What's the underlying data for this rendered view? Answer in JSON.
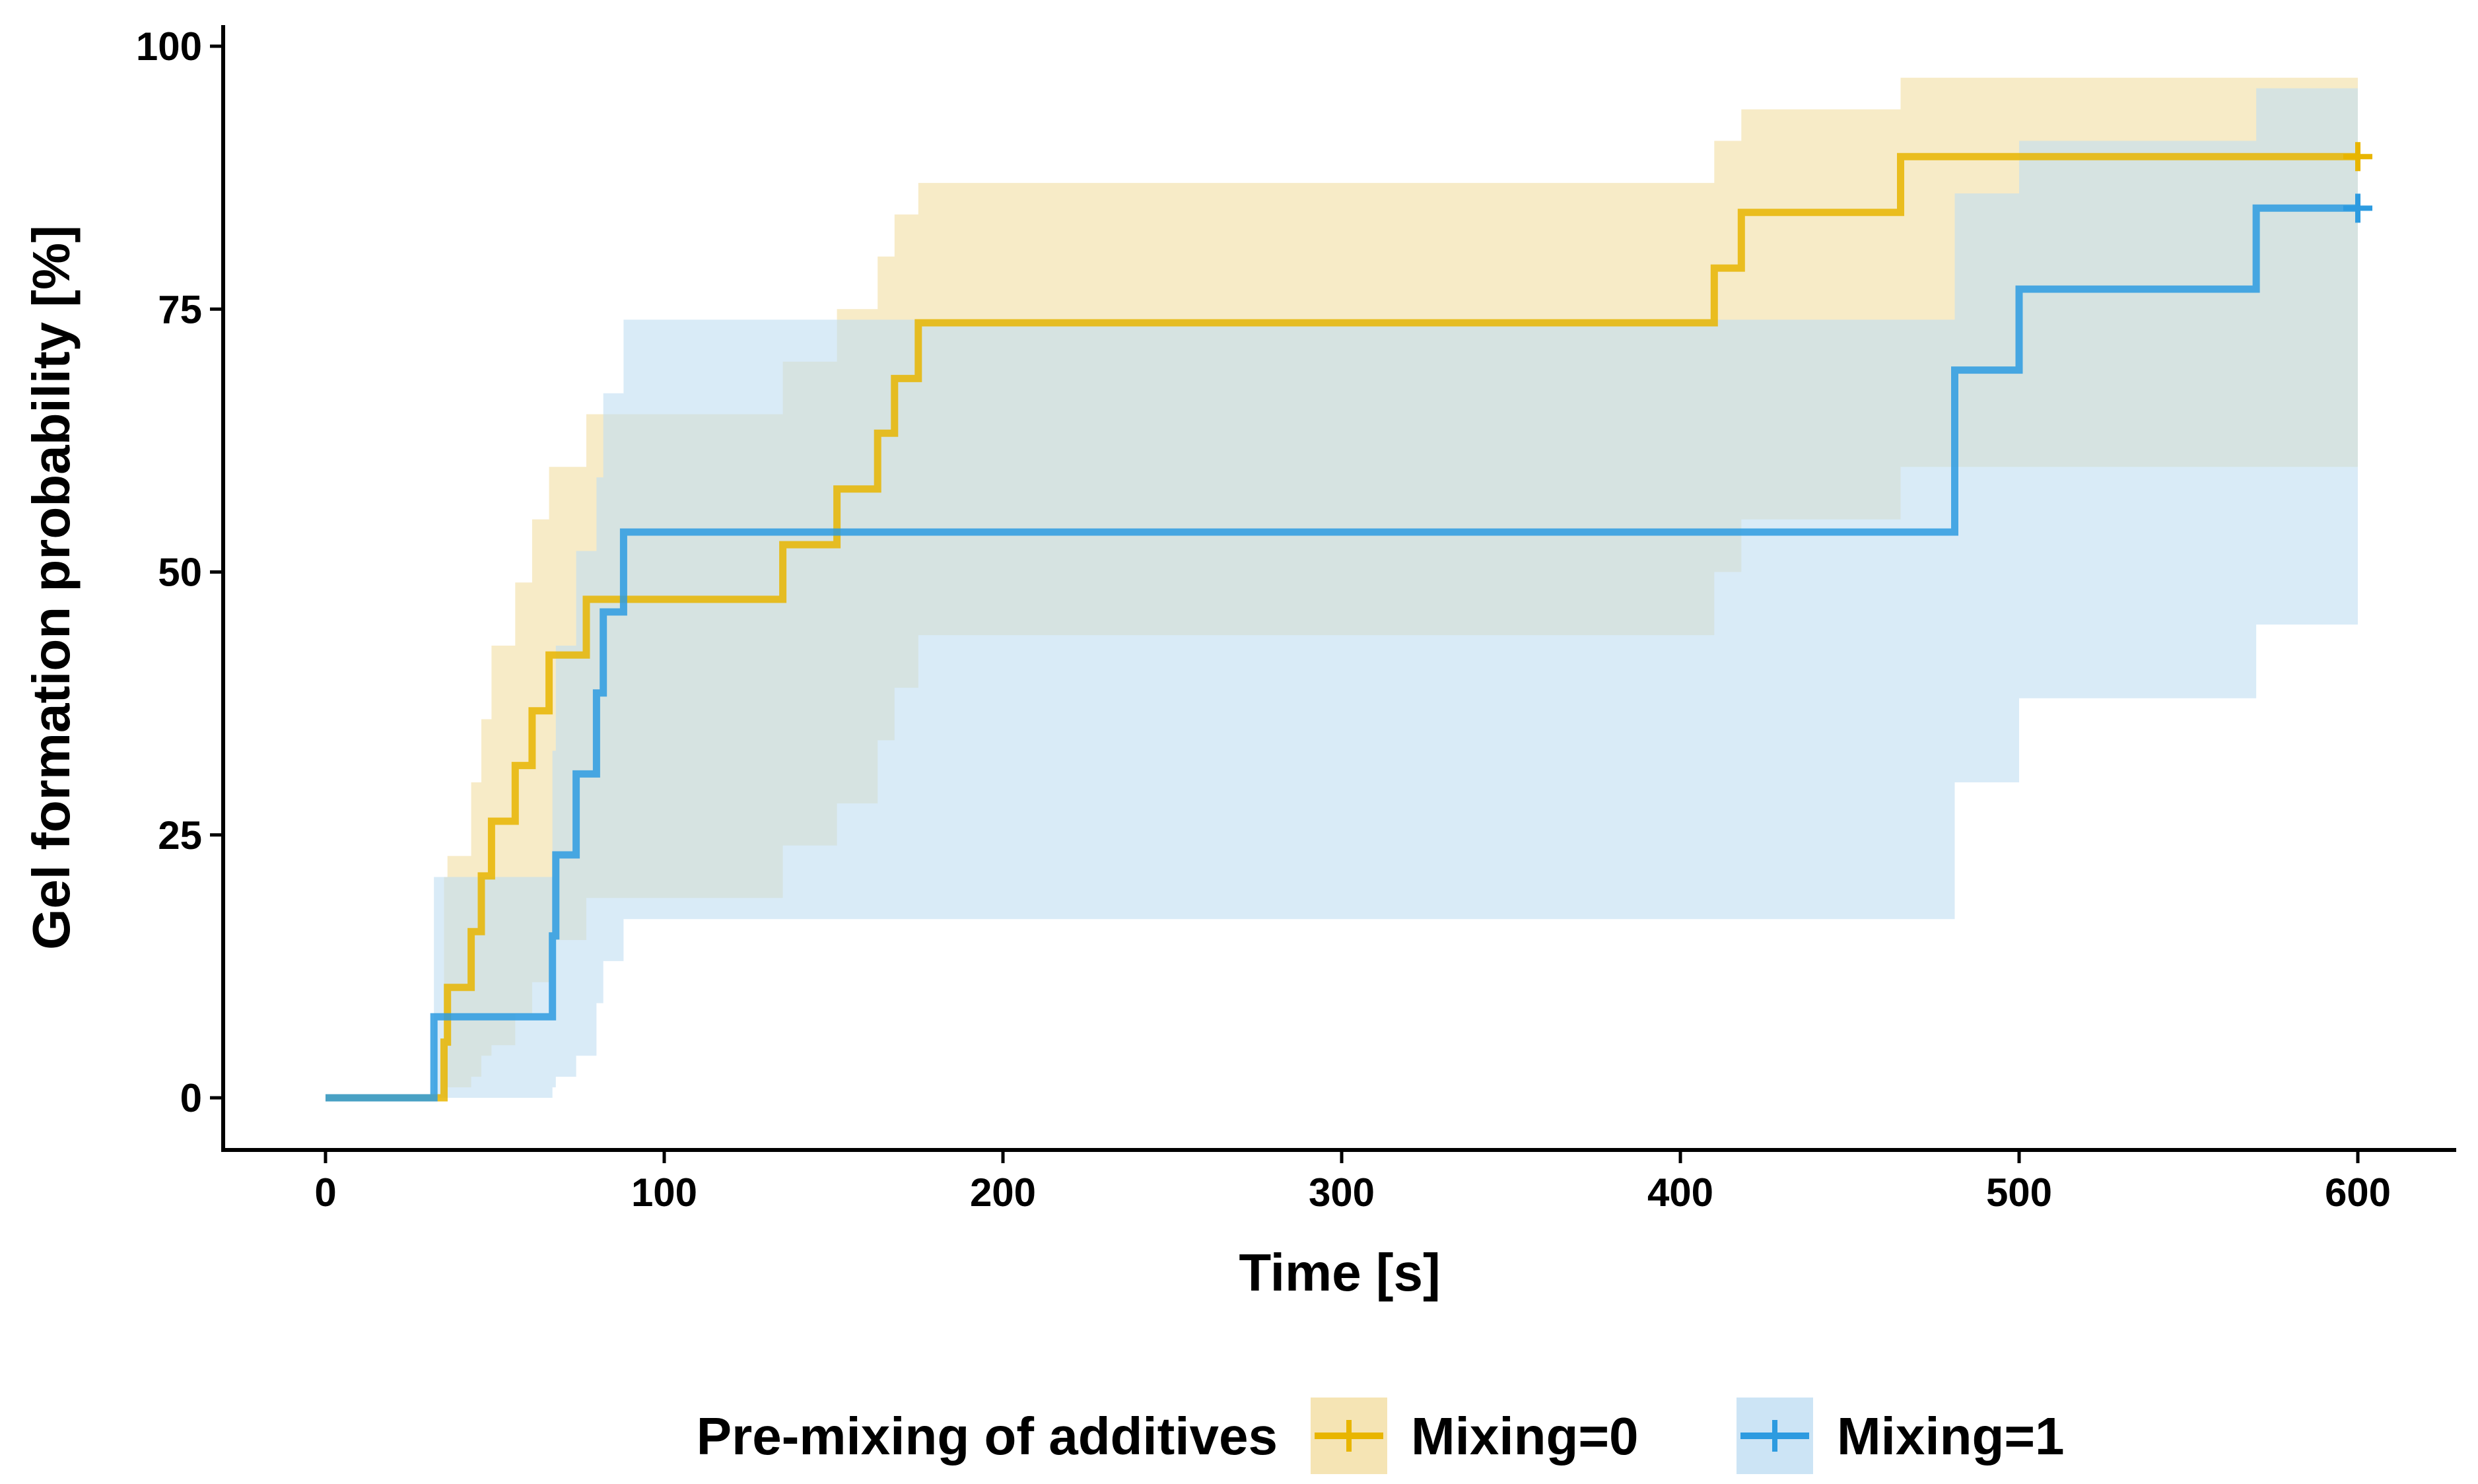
{
  "chart_data": {
    "type": "step",
    "title": "",
    "xlabel": "Time [s]",
    "ylabel": "Gel formation probability [%]",
    "xlim": [
      -30,
      630
    ],
    "ylim": [
      -5,
      102
    ],
    "xticks": [
      0,
      100,
      200,
      300,
      400,
      500,
      600
    ],
    "yticks": [
      0,
      25,
      50,
      75,
      100
    ],
    "legend": {
      "title": "Pre-mixing of additives",
      "position": "bottom"
    },
    "series": [
      {
        "name": "Mixing=0",
        "color": "#E8B500",
        "band_color": "#F2DDA1",
        "points": [
          [
            0,
            0
          ],
          [
            34,
            0
          ],
          [
            35,
            5.3
          ],
          [
            36,
            10.5
          ],
          [
            43,
            15.8
          ],
          [
            46,
            21.1
          ],
          [
            49,
            26.3
          ],
          [
            56,
            31.6
          ],
          [
            61,
            36.8
          ],
          [
            66,
            42.1
          ],
          [
            77,
            47.4
          ],
          [
            135,
            52.6
          ],
          [
            151,
            57.9
          ],
          [
            163,
            63.2
          ],
          [
            168,
            68.4
          ],
          [
            175,
            73.7
          ],
          [
            410,
            78.9
          ],
          [
            418,
            84.2
          ],
          [
            465,
            89.5
          ],
          [
            600,
            89.5
          ]
        ],
        "lower": [
          [
            0,
            0
          ],
          [
            34,
            0
          ],
          [
            36,
            1
          ],
          [
            43,
            2
          ],
          [
            46,
            4
          ],
          [
            49,
            5
          ],
          [
            56,
            8
          ],
          [
            61,
            11
          ],
          [
            66,
            15
          ],
          [
            77,
            19
          ],
          [
            135,
            24
          ],
          [
            151,
            28
          ],
          [
            163,
            34
          ],
          [
            168,
            39
          ],
          [
            175,
            44
          ],
          [
            410,
            50
          ],
          [
            418,
            55
          ],
          [
            465,
            60
          ],
          [
            600,
            61
          ]
        ],
        "upper": [
          [
            0,
            0
          ],
          [
            34,
            0
          ],
          [
            35,
            21
          ],
          [
            36,
            23
          ],
          [
            43,
            30
          ],
          [
            46,
            36
          ],
          [
            49,
            43
          ],
          [
            56,
            49
          ],
          [
            61,
            55
          ],
          [
            66,
            60
          ],
          [
            77,
            65
          ],
          [
            135,
            70
          ],
          [
            151,
            75
          ],
          [
            163,
            80
          ],
          [
            168,
            84
          ],
          [
            175,
            87
          ],
          [
            410,
            91
          ],
          [
            418,
            94
          ],
          [
            465,
            97
          ],
          [
            600,
            97
          ]
        ]
      },
      {
        "name": "Mixing=1",
        "color": "#2D9BE0",
        "band_color": "#BFDDF2",
        "points": [
          [
            0,
            0
          ],
          [
            31,
            0
          ],
          [
            32,
            7.7
          ],
          [
            66,
            7.7
          ],
          [
            67,
            15.4
          ],
          [
            68,
            23.1
          ],
          [
            74,
            30.8
          ],
          [
            80,
            38.5
          ],
          [
            82,
            46.2
          ],
          [
            88,
            53.8
          ],
          [
            480,
            53.8
          ],
          [
            481,
            69.2
          ],
          [
            500,
            76.9
          ],
          [
            570,
            84.6
          ],
          [
            600,
            84.6
          ]
        ],
        "lower": [
          [
            0,
            0
          ],
          [
            31,
            0
          ],
          [
            32,
            0
          ],
          [
            66,
            0
          ],
          [
            67,
            1
          ],
          [
            68,
            2
          ],
          [
            74,
            4
          ],
          [
            80,
            9
          ],
          [
            82,
            13
          ],
          [
            88,
            17
          ],
          [
            480,
            17
          ],
          [
            481,
            30
          ],
          [
            500,
            38
          ],
          [
            570,
            45
          ],
          [
            600,
            45
          ]
        ],
        "upper": [
          [
            0,
            0
          ],
          [
            31,
            0
          ],
          [
            32,
            21
          ],
          [
            66,
            21
          ],
          [
            67,
            33
          ],
          [
            68,
            43
          ],
          [
            74,
            52
          ],
          [
            80,
            59
          ],
          [
            82,
            67
          ],
          [
            88,
            74
          ],
          [
            480,
            74
          ],
          [
            481,
            86
          ],
          [
            500,
            91
          ],
          [
            570,
            96
          ],
          [
            600,
            96
          ]
        ]
      }
    ]
  }
}
